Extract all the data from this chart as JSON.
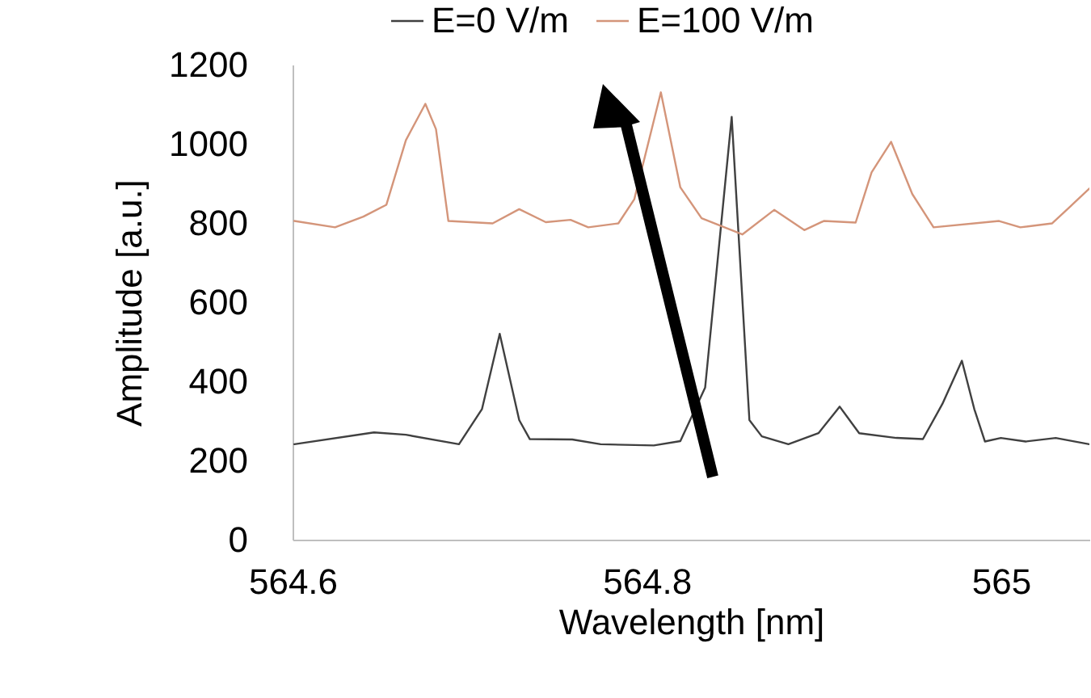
{
  "chart_data": {
    "type": "line",
    "xlabel": "Wavelength [nm]",
    "ylabel": "Amplitude [a.u.]",
    "xlim": [
      564.6,
      565.05
    ],
    "xticks": [
      564.6,
      564.8,
      {
        "value": 565,
        "label": "565"
      }
    ],
    "ylim": [
      0,
      1200
    ],
    "yticks": [
      0,
      200,
      400,
      600,
      800,
      1000,
      1200
    ],
    "grid": false,
    "legend": "top",
    "marker": "none",
    "line_style": "solid",
    "series": [
      {
        "name": "E=0 V/m",
        "color": "#404040",
        "x": [
          564.601,
          564.646,
          564.664,
          564.694,
          564.707,
          564.717,
          564.728,
          564.734,
          564.758,
          564.774,
          564.804,
          564.819,
          564.833,
          564.848,
          564.858,
          564.865,
          564.88,
          564.897,
          564.909,
          564.92,
          564.941,
          564.956,
          564.967,
          564.978,
          564.985,
          564.991,
          565,
          565.014,
          565.031,
          565.05
        ],
        "values": [
          241,
          271,
          265,
          241,
          330,
          520,
          302,
          254,
          253,
          241,
          238,
          249,
          384,
          1068,
          302,
          261,
          241,
          269,
          336,
          269,
          257,
          254,
          343,
          452,
          330,
          248,
          257,
          248,
          257,
          241
        ]
      },
      {
        "name": "E=100 V/m",
        "color": "#d4957a",
        "x": [
          564.601,
          564.624,
          564.64,
          564.653,
          564.664,
          564.675,
          564.681,
          564.688,
          564.713,
          564.728,
          564.743,
          564.757,
          564.767,
          564.784,
          564.793,
          564.808,
          564.819,
          564.831,
          564.854,
          564.872,
          564.889,
          564.9,
          564.918,
          564.927,
          564.938,
          564.95,
          564.962,
          564.999,
          565.011,
          565.029,
          565.041,
          565.05
        ],
        "values": [
          805,
          789,
          816,
          846,
          1009,
          1101,
          1037,
          805,
          799,
          835,
          802,
          808,
          789,
          799,
          860,
          1130,
          890,
          812,
          771,
          833,
          782,
          805,
          801,
          928,
          1005,
          873,
          789,
          805,
          789,
          799,
          849,
          887
        ]
      }
    ]
  }
}
